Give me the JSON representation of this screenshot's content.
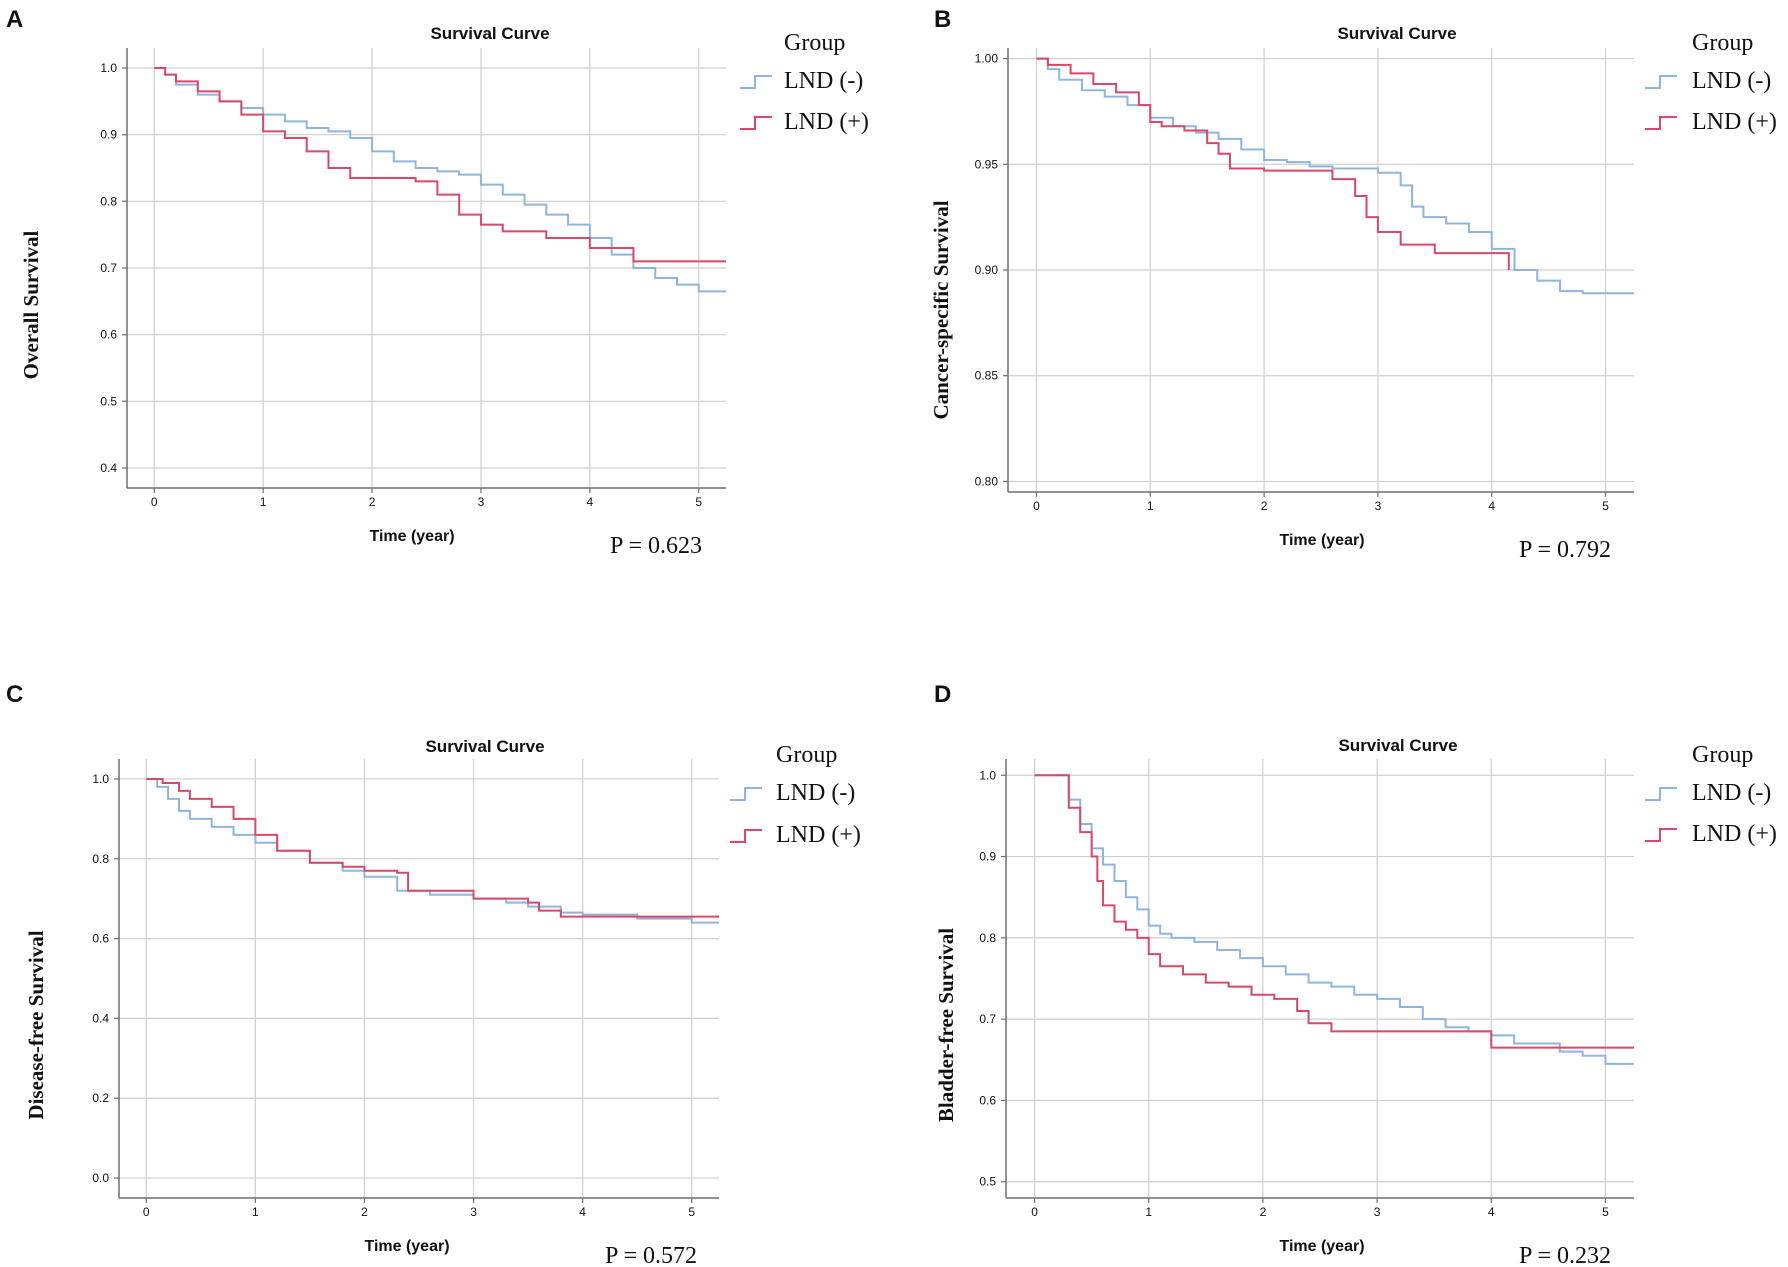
{
  "colors": {
    "lnd_neg": "#8fb5df",
    "lnd_pos": "#d9476b",
    "grid": "#cfcfcf",
    "axis": "#6f6f6f",
    "text": "#111111"
  },
  "chart_data": [
    {
      "type": "line",
      "panel_label": "A",
      "title": "Survival Curve",
      "xlabel": "Time (year)",
      "ylabel": "Overall Survival",
      "xlim": [
        -0.25,
        5.25
      ],
      "ylim": [
        0.37,
        1.03
      ],
      "xticks": [
        0,
        1,
        2,
        3,
        4,
        5
      ],
      "yticks": [
        0.4,
        0.5,
        0.6,
        0.7,
        0.8,
        0.9,
        1.0
      ],
      "ytick_labels": [
        "0.4",
        "0.5",
        "0.6",
        "0.7",
        "0.8",
        "0.9",
        "1.0"
      ],
      "legend_title": "Group",
      "p_value": "P = 0.623",
      "series": [
        {
          "name": "LND (-)",
          "color_key": "lnd_neg",
          "x": [
            0,
            0.1,
            0.2,
            0.4,
            0.6,
            0.8,
            1.0,
            1.2,
            1.4,
            1.6,
            1.8,
            2.0,
            2.2,
            2.4,
            2.6,
            2.8,
            3.0,
            3.2,
            3.4,
            3.6,
            3.8,
            4.0,
            4.2,
            4.4,
            4.6,
            4.8,
            5.0,
            5.25
          ],
          "y": [
            1.0,
            0.99,
            0.975,
            0.96,
            0.95,
            0.94,
            0.93,
            0.92,
            0.91,
            0.905,
            0.895,
            0.875,
            0.86,
            0.85,
            0.845,
            0.84,
            0.825,
            0.81,
            0.795,
            0.78,
            0.765,
            0.745,
            0.72,
            0.7,
            0.685,
            0.675,
            0.665,
            0.665
          ]
        },
        {
          "name": "LND (+)",
          "color_key": "lnd_pos",
          "x": [
            0,
            0.1,
            0.2,
            0.4,
            0.6,
            0.8,
            1.0,
            1.2,
            1.4,
            1.6,
            1.8,
            2.0,
            2.2,
            2.4,
            2.6,
            2.8,
            3.0,
            3.2,
            3.4,
            3.6,
            3.8,
            4.0,
            4.2,
            4.4,
            4.6,
            4.8,
            5.0,
            5.25
          ],
          "y": [
            1.0,
            0.99,
            0.98,
            0.965,
            0.95,
            0.93,
            0.905,
            0.895,
            0.875,
            0.85,
            0.835,
            0.835,
            0.835,
            0.83,
            0.81,
            0.78,
            0.765,
            0.755,
            0.755,
            0.745,
            0.745,
            0.73,
            0.73,
            0.71,
            0.71,
            0.71,
            0.71,
            0.71
          ]
        }
      ]
    },
    {
      "type": "line",
      "panel_label": "B",
      "title": "Survival Curve",
      "xlabel": "Time (year)",
      "ylabel": "Cancer-specific Survival",
      "xlim": [
        -0.25,
        5.25
      ],
      "ylim": [
        0.795,
        1.005
      ],
      "xticks": [
        0,
        1,
        2,
        3,
        4,
        5
      ],
      "yticks": [
        0.8,
        0.85,
        0.9,
        0.95,
        1.0
      ],
      "ytick_labels": [
        "0.80",
        "0.85",
        "0.90",
        "0.95",
        "1.00"
      ],
      "legend_title": "Group",
      "p_value": "P = 0.792",
      "series": [
        {
          "name": "LND (-)",
          "color_key": "lnd_neg",
          "x": [
            0,
            0.1,
            0.2,
            0.4,
            0.6,
            0.8,
            1.0,
            1.2,
            1.4,
            1.6,
            1.8,
            2.0,
            2.2,
            2.4,
            2.6,
            2.8,
            3.0,
            3.2,
            3.3,
            3.4,
            3.6,
            3.8,
            4.0,
            4.2,
            4.4,
            4.6,
            4.8,
            5.0,
            5.25
          ],
          "y": [
            1.0,
            0.995,
            0.99,
            0.985,
            0.982,
            0.978,
            0.972,
            0.968,
            0.965,
            0.962,
            0.957,
            0.952,
            0.951,
            0.949,
            0.948,
            0.948,
            0.946,
            0.94,
            0.93,
            0.925,
            0.922,
            0.918,
            0.91,
            0.9,
            0.895,
            0.89,
            0.889,
            0.889,
            0.889
          ]
        },
        {
          "name": "LND (+)",
          "color_key": "lnd_pos",
          "x": [
            0,
            0.1,
            0.3,
            0.5,
            0.7,
            0.9,
            1.0,
            1.1,
            1.3,
            1.5,
            1.6,
            1.7,
            2.0,
            2.2,
            2.4,
            2.6,
            2.8,
            2.9,
            3.0,
            3.2,
            3.5,
            3.8,
            4.0,
            4.1,
            4.15
          ],
          "y": [
            1.0,
            0.997,
            0.993,
            0.988,
            0.984,
            0.978,
            0.97,
            0.968,
            0.966,
            0.96,
            0.955,
            0.948,
            0.947,
            0.947,
            0.947,
            0.943,
            0.935,
            0.925,
            0.918,
            0.912,
            0.908,
            0.908,
            0.908,
            0.908,
            0.9
          ]
        }
      ]
    },
    {
      "type": "line",
      "panel_label": "C",
      "title": "Survival Curve",
      "xlabel": "Time (year)",
      "ylabel": "Disease-free Survival",
      "xlim": [
        -0.25,
        5.25
      ],
      "ylim": [
        -0.05,
        1.05
      ],
      "xticks": [
        0,
        1,
        2,
        3,
        4,
        5
      ],
      "yticks": [
        0.0,
        0.2,
        0.4,
        0.6,
        0.8,
        1.0
      ],
      "ytick_labels": [
        "0.0",
        "0.2",
        "0.4",
        "0.6",
        "0.8",
        "1.0"
      ],
      "legend_title": "Group",
      "p_value": "P = 0.572",
      "series": [
        {
          "name": "LND (-)",
          "color_key": "lnd_neg",
          "x": [
            0,
            0.1,
            0.2,
            0.3,
            0.4,
            0.6,
            0.8,
            1.0,
            1.2,
            1.5,
            1.8,
            2.0,
            2.3,
            2.6,
            3.0,
            3.3,
            3.5,
            3.8,
            4.0,
            4.5,
            5.0,
            5.25
          ],
          "y": [
            1.0,
            0.98,
            0.95,
            0.92,
            0.9,
            0.88,
            0.86,
            0.84,
            0.82,
            0.79,
            0.77,
            0.755,
            0.72,
            0.71,
            0.7,
            0.69,
            0.68,
            0.665,
            0.66,
            0.65,
            0.64,
            0.64
          ]
        },
        {
          "name": "LND (+)",
          "color_key": "lnd_pos",
          "x": [
            0,
            0.15,
            0.3,
            0.4,
            0.6,
            0.8,
            1.0,
            1.2,
            1.5,
            1.8,
            2.0,
            2.3,
            2.4,
            3.0,
            3.5,
            3.6,
            3.8,
            4.0,
            4.5,
            5.0,
            5.25
          ],
          "y": [
            1.0,
            0.99,
            0.97,
            0.95,
            0.93,
            0.9,
            0.86,
            0.82,
            0.79,
            0.78,
            0.77,
            0.765,
            0.72,
            0.7,
            0.69,
            0.67,
            0.655,
            0.655,
            0.655,
            0.655,
            0.655
          ]
        }
      ]
    },
    {
      "type": "line",
      "panel_label": "D",
      "title": "Survival Curve",
      "xlabel": "Time (year)",
      "ylabel": "Bladder-free Survival",
      "xlim": [
        -0.25,
        5.25
      ],
      "ylim": [
        0.48,
        1.02
      ],
      "xticks": [
        0,
        1,
        2,
        3,
        4,
        5
      ],
      "yticks": [
        0.5,
        0.6,
        0.7,
        0.8,
        0.9,
        1.0
      ],
      "ytick_labels": [
        "0.5",
        "0.6",
        "0.7",
        "0.8",
        "0.9",
        "1.0"
      ],
      "legend_title": "Group",
      "p_value": "P = 0.232",
      "series": [
        {
          "name": "LND (-)",
          "color_key": "lnd_neg",
          "x": [
            0,
            0.25,
            0.3,
            0.4,
            0.5,
            0.6,
            0.7,
            0.8,
            0.9,
            1.0,
            1.1,
            1.2,
            1.4,
            1.6,
            1.8,
            2.0,
            2.2,
            2.4,
            2.6,
            2.8,
            3.0,
            3.2,
            3.4,
            3.6,
            3.8,
            4.0,
            4.2,
            4.4,
            4.6,
            4.8,
            5.0,
            5.25
          ],
          "y": [
            1.0,
            1.0,
            0.97,
            0.94,
            0.91,
            0.89,
            0.87,
            0.85,
            0.835,
            0.815,
            0.805,
            0.8,
            0.795,
            0.785,
            0.775,
            0.765,
            0.755,
            0.745,
            0.74,
            0.73,
            0.725,
            0.715,
            0.7,
            0.69,
            0.685,
            0.68,
            0.67,
            0.67,
            0.66,
            0.655,
            0.645,
            0.645
          ]
        },
        {
          "name": "LND (+)",
          "color_key": "lnd_pos",
          "x": [
            0,
            0.25,
            0.3,
            0.4,
            0.5,
            0.55,
            0.6,
            0.7,
            0.8,
            0.9,
            1.0,
            1.1,
            1.3,
            1.5,
            1.7,
            1.9,
            2.1,
            2.3,
            2.4,
            2.6,
            2.8,
            3.0,
            3.5,
            3.8,
            4.0,
            4.2,
            4.5,
            5.0,
            5.25
          ],
          "y": [
            1.0,
            1.0,
            0.96,
            0.93,
            0.9,
            0.87,
            0.84,
            0.82,
            0.81,
            0.8,
            0.78,
            0.765,
            0.755,
            0.745,
            0.74,
            0.73,
            0.725,
            0.71,
            0.695,
            0.685,
            0.685,
            0.685,
            0.685,
            0.685,
            0.665,
            0.665,
            0.665,
            0.665,
            0.665
          ]
        }
      ]
    }
  ]
}
